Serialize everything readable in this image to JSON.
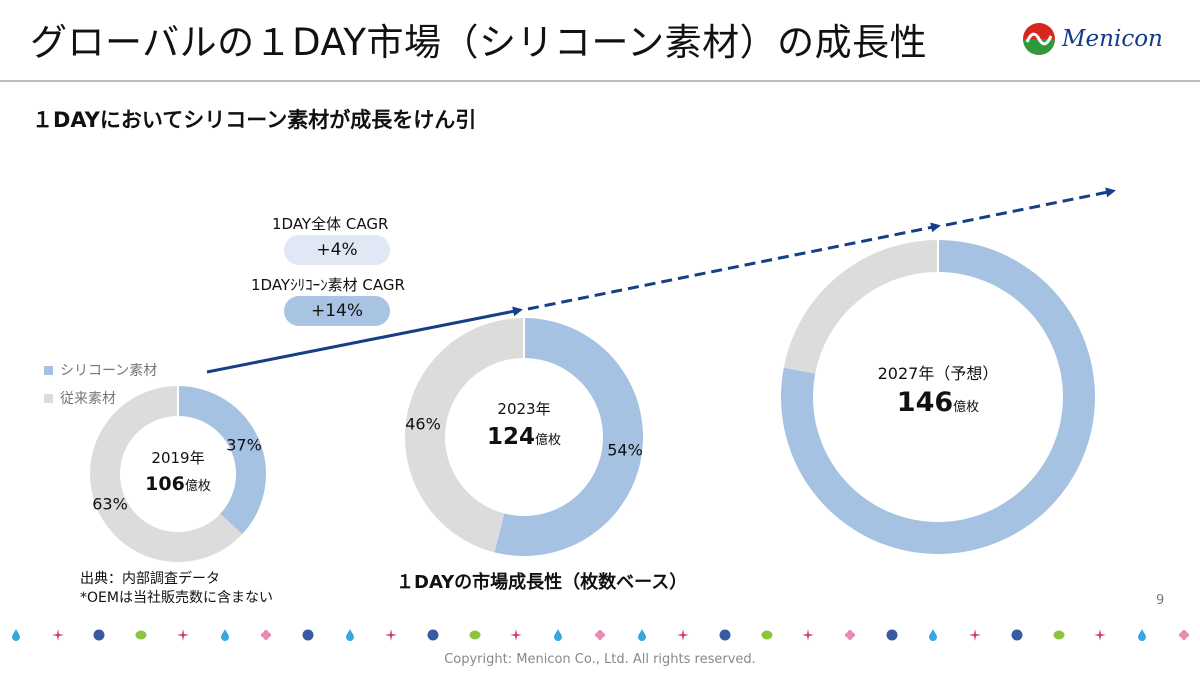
{
  "page": {
    "title": "グローバルの１DAY市場（シリコーン素材）の成長性",
    "subtitle": "１DAYにおいてシリコーン素材が成長をけん引",
    "logo_text": "Menicon",
    "page_number": "9",
    "copyright": "Copyright: Menicon Co., Ltd. All rights reserved.",
    "source_lines": [
      "出典：内部調査データ",
      "*OEMは当社販売数に含まない"
    ],
    "deco_icons": [
      "drop",
      "sparkle",
      "m-badge",
      "leaf",
      "sparkle",
      "drop",
      "flower",
      "m-badge",
      "drop",
      "sparkle",
      "m-badge",
      "leaf",
      "sparkle",
      "drop",
      "flower",
      "drop",
      "sparkle",
      "m-badge",
      "leaf",
      "sparkle",
      "flower",
      "m-badge",
      "drop",
      "sparkle",
      "m-badge",
      "leaf",
      "sparkle",
      "drop",
      "flower"
    ]
  },
  "cagr": {
    "total_label": "1DAY全体 CAGR",
    "total_value": "+4%",
    "silicone_label": "1DAYｼﾘｺｰﾝ素材 CAGR",
    "silicone_value": "+14%",
    "total_pill_color": "#dfe8f4",
    "silicone_pill_color": "#a9c3e3"
  },
  "chart_data": {
    "type": "donut",
    "title": "１DAYの市場成長性（枚数ベース）",
    "legend": [
      {
        "name": "シリコーン素材",
        "color": "#a6c2e3"
      },
      {
        "name": "従来素材",
        "color": "#dcdcdc"
      }
    ],
    "legend_placement": "left",
    "unit": "億枚",
    "years": [
      {
        "year_label": "2019年",
        "total": "106",
        "silicone_pct": 37,
        "conventional_pct": 63,
        "silicone_label": "37%",
        "conventional_label": "63%"
      },
      {
        "year_label": "2023年",
        "total": "124",
        "silicone_pct": 54,
        "conventional_pct": 46,
        "silicone_label": "54%",
        "conventional_label": "46%"
      },
      {
        "year_label": "2027年（予想）",
        "total": "146",
        "silicone_pct": 78,
        "conventional_pct": 22,
        "silicone_label": "",
        "conventional_label": ""
      }
    ],
    "trend_color": "#173f86"
  }
}
